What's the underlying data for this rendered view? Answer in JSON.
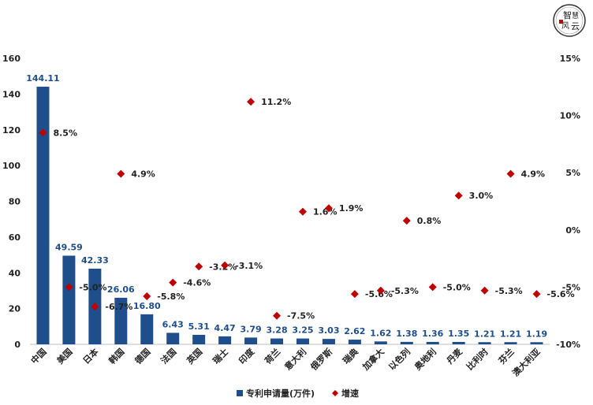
{
  "chart_data": {
    "type": "bar",
    "categories": [
      "中国",
      "美国",
      "日本",
      "韩国",
      "德国",
      "法国",
      "英国",
      "瑞士",
      "印度",
      "荷兰",
      "意大利",
      "俄罗斯",
      "瑞典",
      "加拿大",
      "以色列",
      "奥地利",
      "丹麦",
      "比利时",
      "芬兰",
      "澳大利亚"
    ],
    "series": [
      {
        "name": "专利申请量(万件)",
        "type": "bar",
        "axis": "left",
        "values": [
          144.11,
          49.59,
          42.33,
          26.06,
          16.8,
          6.43,
          5.31,
          4.47,
          3.79,
          3.28,
          3.25,
          3.03,
          2.62,
          1.62,
          1.38,
          1.36,
          1.35,
          1.21,
          1.21,
          1.19
        ],
        "labels": [
          "144.11",
          "49.59",
          "42.33",
          "26.06",
          "16.80",
          "6.43",
          "5.31",
          "4.47",
          "3.79",
          "3.28",
          "3.25",
          "3.03",
          "2.62",
          "1.62",
          "1.38",
          "1.36",
          "1.35",
          "1.21",
          "1.21",
          "1.19"
        ],
        "color": "#1f4e8c"
      },
      {
        "name": "增速",
        "type": "scatter",
        "axis": "right",
        "values": [
          8.5,
          -5.0,
          -6.7,
          4.9,
          -5.8,
          -4.6,
          -3.2,
          -3.1,
          11.2,
          -7.5,
          1.6,
          1.9,
          -5.6,
          -5.3,
          0.8,
          -5.0,
          3.0,
          -5.3,
          4.9,
          -5.6
        ],
        "labels": [
          "8.5%",
          "-5.0%",
          "-6.7%",
          "4.9%",
          "-5.8%",
          "-4.6%",
          "-3.2%",
          "-3.1%",
          "11.2%",
          "-7.5%",
          "1.6%",
          "1.9%",
          "-5.6%",
          "-5.3%",
          "0.8%",
          "-5.0%",
          "3.0%",
          "-5.3%",
          "4.9%",
          "-5.6%"
        ],
        "color": "#c00000"
      }
    ],
    "left_axis": {
      "min": 0,
      "max": 160,
      "ticks": [
        "0",
        "20",
        "40",
        "60",
        "80",
        "100",
        "120",
        "140",
        "160"
      ]
    },
    "right_axis": {
      "min": -10,
      "max": 15,
      "ticks": [
        "-10%",
        "-5%",
        "0%",
        "5%",
        "10%",
        "15%"
      ]
    },
    "legend_position": "bottom",
    "grid": false
  },
  "logo": {
    "text": "智慧风云",
    "color": "#c00000"
  }
}
